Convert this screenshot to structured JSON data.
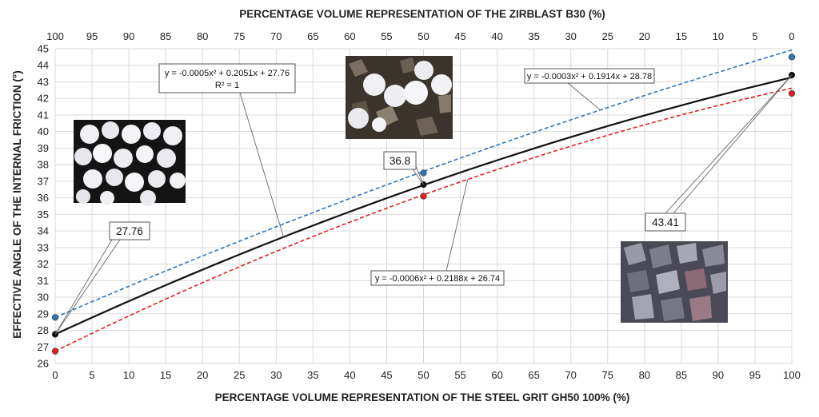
{
  "chart_data": {
    "type": "line",
    "title": "",
    "xlabel_bottom": "PERCENTAGE VOLUME REPRESENTATION OF THE STEEL GRIT GH50 100% (%)",
    "xlabel_top": "PERCENTAGE VOLUME REPRESENTATION OF THE ZIRBLAST B30 (%)",
    "ylabel": "EFFECTIVE ANGLE OF THE INTERNAL FRICTION (°)",
    "xlim": [
      0,
      100
    ],
    "ylim": [
      26,
      45
    ],
    "xticks": [
      "0",
      "5",
      "10",
      "15",
      "20",
      "25",
      "30",
      "35",
      "40",
      "45",
      "50",
      "55",
      "60",
      "65",
      "70",
      "75",
      "80",
      "85",
      "90",
      "95",
      "100"
    ],
    "xticks_top": [
      "100",
      "95",
      "90",
      "85",
      "80",
      "75",
      "70",
      "65",
      "60",
      "55",
      "50",
      "45",
      "40",
      "35",
      "30",
      "25",
      "20",
      "15",
      "10",
      "5",
      "0"
    ],
    "yticks": [
      "26",
      "27",
      "28",
      "29",
      "30",
      "31",
      "32",
      "33",
      "34",
      "35",
      "36",
      "37",
      "38",
      "39",
      "40",
      "41",
      "42",
      "43",
      "44",
      "45"
    ],
    "grid": true,
    "legend": "none",
    "series": [
      {
        "color": "#2e75b6",
        "style": "dashed",
        "fit": {
          "a": -0.0003,
          "b": 0.1914,
          "c": 28.78
        },
        "points": [
          {
            "x": 0,
            "y": 28.78
          },
          {
            "x": 50,
            "y": 37.5
          },
          {
            "x": 100,
            "y": 44.5
          }
        ]
      },
      {
        "color": "#111111",
        "style": "solid",
        "fit": {
          "a": -0.0005,
          "b": 0.2051,
          "c": 27.76
        },
        "points": [
          {
            "x": 0,
            "y": 27.76
          },
          {
            "x": 50,
            "y": 36.8
          },
          {
            "x": 100,
            "y": 43.41
          }
        ]
      },
      {
        "color": "#e02020",
        "style": "dashed",
        "fit": {
          "a": -0.0006,
          "b": 0.2188,
          "c": 26.74
        },
        "points": [
          {
            "x": 0,
            "y": 26.74
          },
          {
            "x": 50,
            "y": 36.1
          },
          {
            "x": 100,
            "y": 42.3
          }
        ]
      }
    ],
    "annotations": {
      "eq_mid": "y = -0.0005x² + 0.2051x + 27.76",
      "r2": "R² = 1",
      "eq_upper": "y = -0.0003x² + 0.1914x + 28.78",
      "eq_lower": "y = -0.0006x² + 0.2188x + 26.74",
      "label_0": "27.76",
      "label_50": "36.8",
      "label_100": "43.41"
    }
  }
}
